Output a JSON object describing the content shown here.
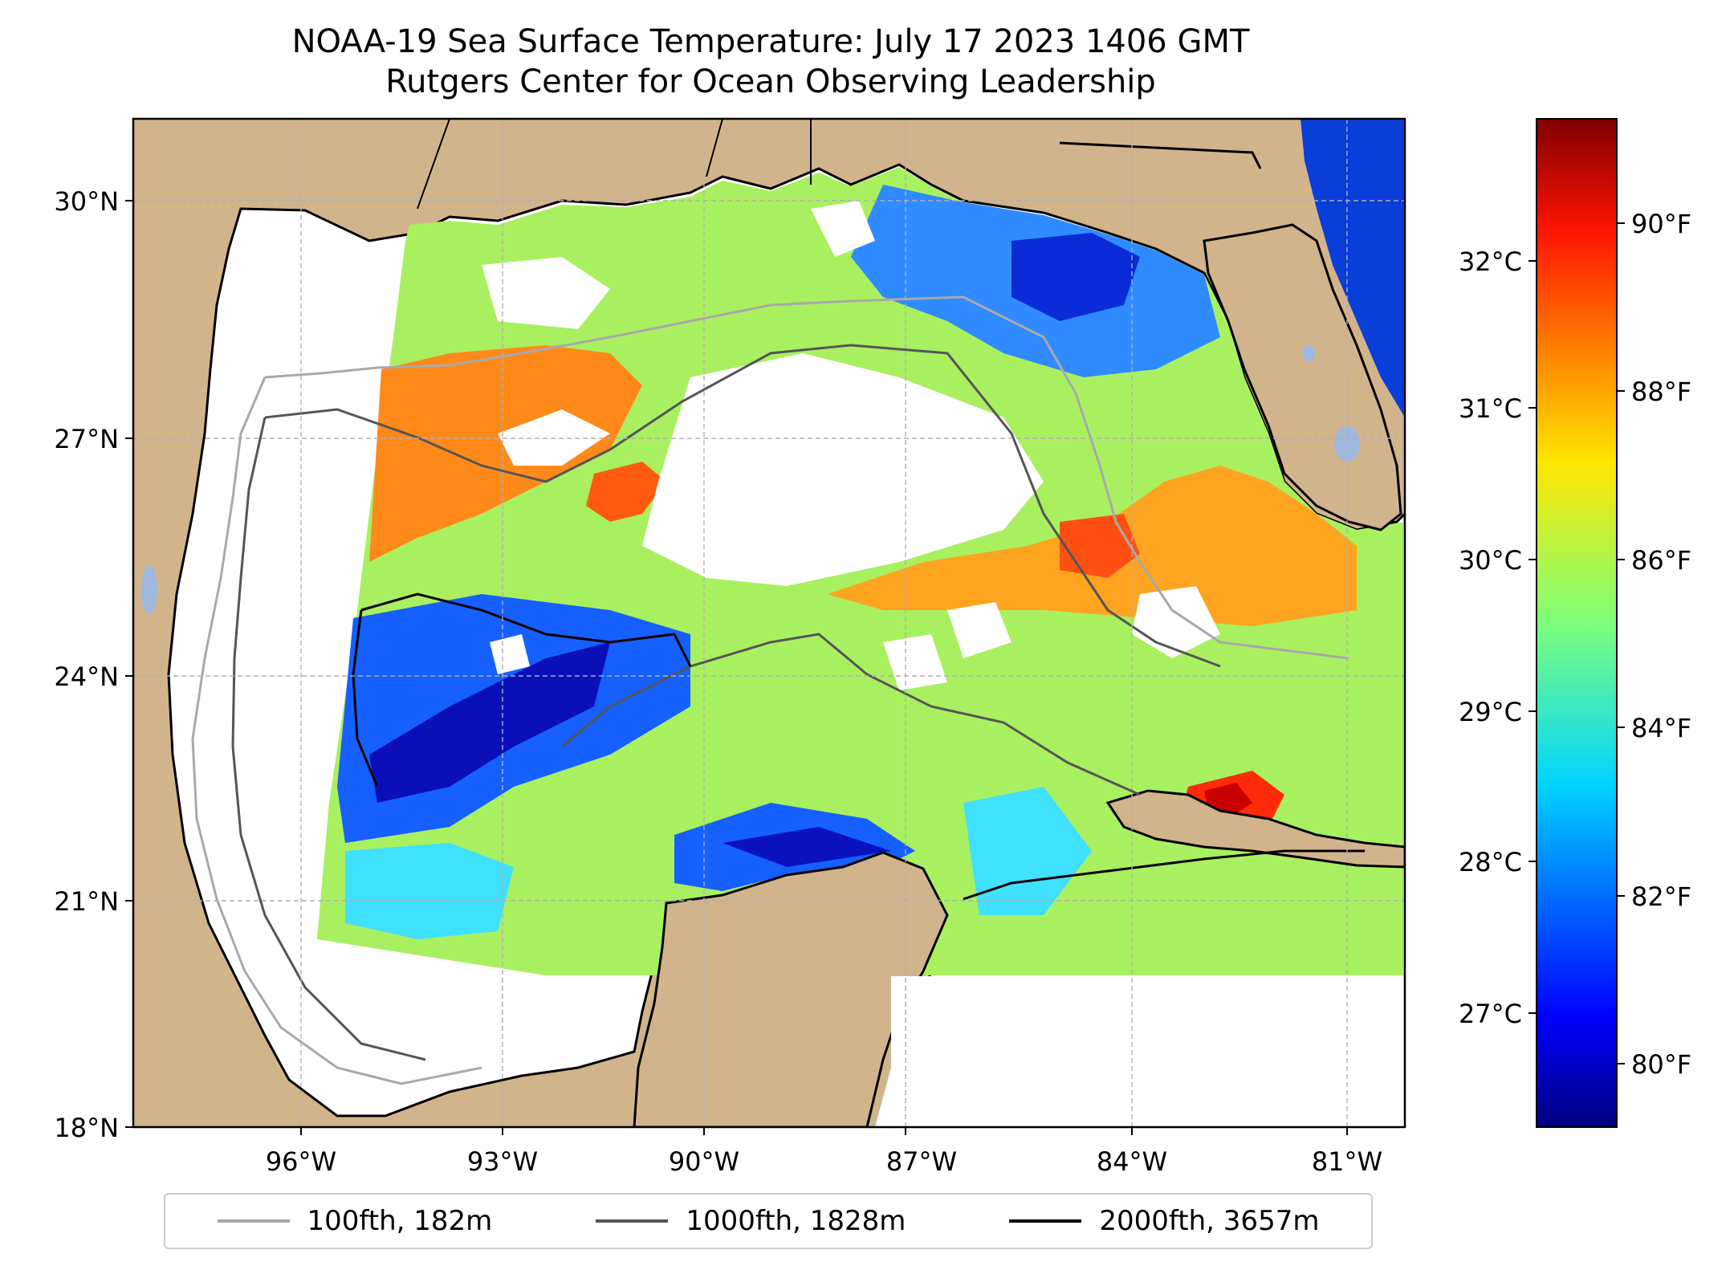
{
  "title_line1": "NOAA-19 Sea Surface Temperature: July 17 2023 1406 GMT",
  "title_line2": "Rutgers Center for Ocean Observing Leadership",
  "map": {
    "lon_range": [
      -98.2,
      -79.8
    ],
    "lat_range": [
      18.0,
      31.1
    ],
    "lat_ticks": [
      {
        "value": 30,
        "label": "30°N"
      },
      {
        "value": 27,
        "label": "27°N"
      },
      {
        "value": 24,
        "label": "24°N"
      },
      {
        "value": 21,
        "label": "21°N"
      },
      {
        "value": 18,
        "label": "18°N"
      }
    ],
    "lon_ticks": [
      {
        "value": -96,
        "label": "96°W"
      },
      {
        "value": -93,
        "label": "93°W"
      },
      {
        "value": -90,
        "label": "90°W"
      },
      {
        "value": -87,
        "label": "87°W"
      },
      {
        "value": -84,
        "label": "84°W"
      },
      {
        "value": -81,
        "label": "81°W"
      }
    ],
    "colors": {
      "land": "#d2b48c",
      "no_data": "#ffffff",
      "lakes": "#9fb8e0",
      "grid": "#b0b0b0"
    }
  },
  "colorbar": {
    "colormap": "jet",
    "range_f": [
      79.3,
      91.3
    ],
    "celsius_ticks": [
      {
        "value": 32,
        "label": "32°C"
      },
      {
        "value": 31,
        "label": "31°C"
      },
      {
        "value": 30,
        "label": "30°C"
      },
      {
        "value": 29,
        "label": "29°C"
      },
      {
        "value": 28,
        "label": "28°C"
      },
      {
        "value": 27,
        "label": "27°C"
      }
    ],
    "fahrenheit_ticks": [
      {
        "value": 90,
        "label": "90°F"
      },
      {
        "value": 88,
        "label": "88°F"
      },
      {
        "value": 86,
        "label": "86°F"
      },
      {
        "value": 84,
        "label": "84°F"
      },
      {
        "value": 82,
        "label": "82°F"
      },
      {
        "value": 80,
        "label": "80°F"
      }
    ]
  },
  "legend": [
    {
      "label": "100fth, 182m",
      "color": "#a9a9a9"
    },
    {
      "label": "1000fth, 1828m",
      "color": "#555555"
    },
    {
      "label": "2000fth, 3657m",
      "color": "#000000"
    }
  ]
}
